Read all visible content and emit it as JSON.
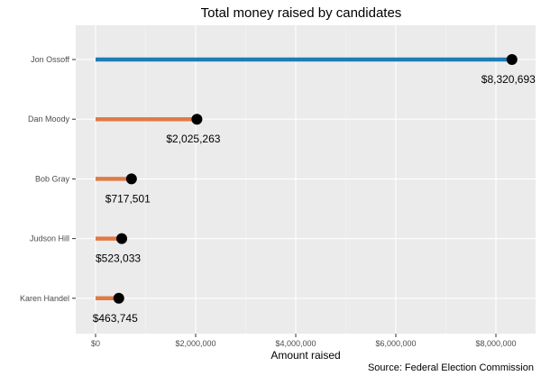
{
  "chart_data": {
    "type": "lollipop",
    "title": "Total money raised by candidates",
    "xlabel": "Amount raised",
    "ylabel": "",
    "caption": "Source: Federal Election Commission",
    "xlim": [
      0,
      8500000
    ],
    "xticks": [
      0,
      2000000,
      4000000,
      6000000,
      8000000
    ],
    "xtick_labels": [
      "$0",
      "$2,000,000",
      "$4,000,000",
      "$6,000,000",
      "$8,000,000"
    ],
    "grid": true,
    "categories": [
      "Jon Ossoff",
      "Dan Moody",
      "Bob Gray",
      "Judson Hill",
      "Karen Handel"
    ],
    "values": [
      8320693,
      2025263,
      717501,
      523033,
      463745
    ],
    "value_labels": [
      "$8,320,693",
      "$2,025,263",
      "$717,501",
      "$523,033",
      "$463,745"
    ],
    "colors": [
      "#1f7cb4",
      "#e07b45",
      "#e07b45",
      "#e07b45",
      "#e07b45"
    ],
    "point_color": "#000000",
    "panel_background": "#ebebeb"
  }
}
